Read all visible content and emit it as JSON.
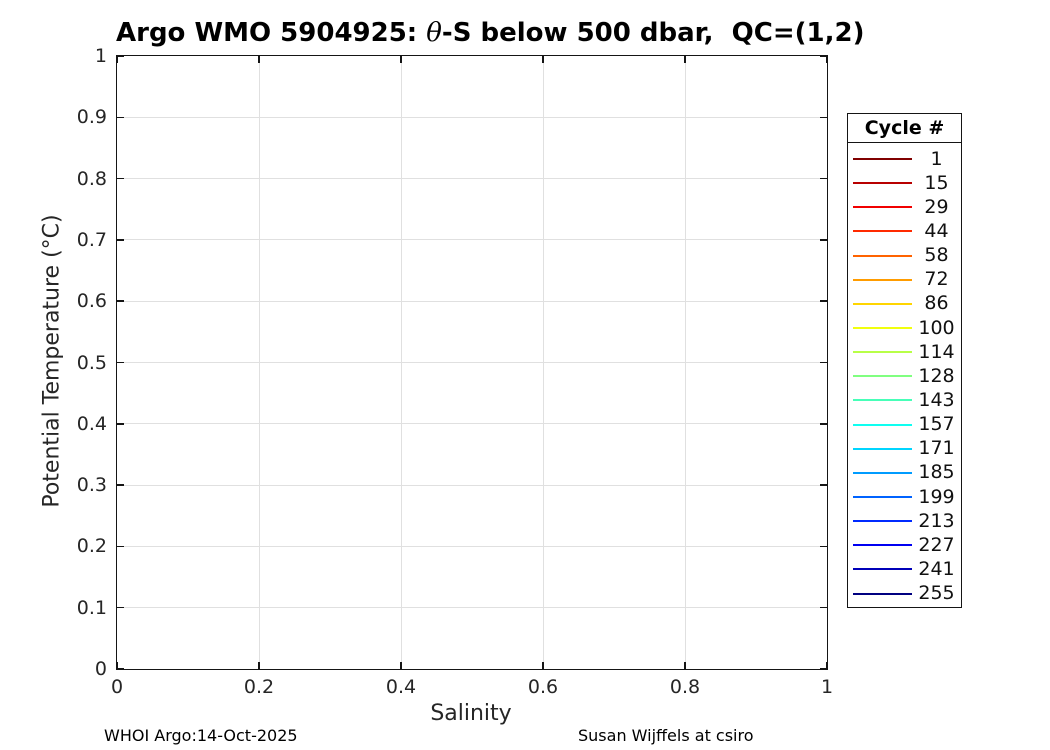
{
  "title": {
    "prefix": "Argo WMO 5904925: ",
    "theta": "θ",
    "suffix": "-S below 500 dbar,  QC=(1,2)"
  },
  "footer": {
    "left": "WHOI Argo:14-Oct-2025",
    "right": "Susan Wijffels at csiro"
  },
  "chart_data": {
    "type": "line",
    "title": "Argo WMO 5904925: θ-S below 500 dbar,  QC=(1,2)",
    "xlabel": "Salinity",
    "ylabel": "Potential Temperature (°C)",
    "xlim": [
      0,
      1
    ],
    "ylim": [
      0,
      1
    ],
    "x_ticks": [
      0,
      0.2,
      0.4,
      0.6,
      0.8,
      1
    ],
    "x_tick_labels": [
      "0",
      "0.2",
      "0.4",
      "0.6",
      "0.8",
      "1"
    ],
    "y_ticks": [
      0,
      0.1,
      0.2,
      0.3,
      0.4,
      0.5,
      0.6,
      0.7,
      0.8,
      0.9,
      1
    ],
    "y_tick_labels": [
      "0",
      "0.1",
      "0.2",
      "0.3",
      "0.4",
      "0.5",
      "0.6",
      "0.7",
      "0.8",
      "0.9",
      "1"
    ],
    "grid": true,
    "legend_title": "Cycle #",
    "legend_position": "outside-right",
    "series": [
      {
        "name": "1",
        "color": "#800000",
        "x": [],
        "y": []
      },
      {
        "name": "15",
        "color": "#B80000",
        "x": [],
        "y": []
      },
      {
        "name": "29",
        "color": "#F10000",
        "x": [],
        "y": []
      },
      {
        "name": "44",
        "color": "#FF2A00",
        "x": [],
        "y": []
      },
      {
        "name": "58",
        "color": "#FF6300",
        "x": [],
        "y": []
      },
      {
        "name": "72",
        "color": "#FF9C00",
        "x": [],
        "y": []
      },
      {
        "name": "86",
        "color": "#FFD500",
        "x": [],
        "y": []
      },
      {
        "name": "100",
        "color": "#F1FF0E",
        "x": [],
        "y": []
      },
      {
        "name": "114",
        "color": "#B8FF47",
        "x": [],
        "y": []
      },
      {
        "name": "128",
        "color": "#80FF80",
        "x": [],
        "y": []
      },
      {
        "name": "143",
        "color": "#47FFB8",
        "x": [],
        "y": []
      },
      {
        "name": "157",
        "color": "#0EFFF1",
        "x": [],
        "y": []
      },
      {
        "name": "171",
        "color": "#00D5FF",
        "x": [],
        "y": []
      },
      {
        "name": "185",
        "color": "#009CFF",
        "x": [],
        "y": []
      },
      {
        "name": "199",
        "color": "#0063FF",
        "x": [],
        "y": []
      },
      {
        "name": "213",
        "color": "#002AFF",
        "x": [],
        "y": []
      },
      {
        "name": "227",
        "color": "#0000F1",
        "x": [],
        "y": []
      },
      {
        "name": "241",
        "color": "#0000B8",
        "x": [],
        "y": []
      },
      {
        "name": "255",
        "color": "#000080",
        "x": [],
        "y": []
      }
    ]
  }
}
